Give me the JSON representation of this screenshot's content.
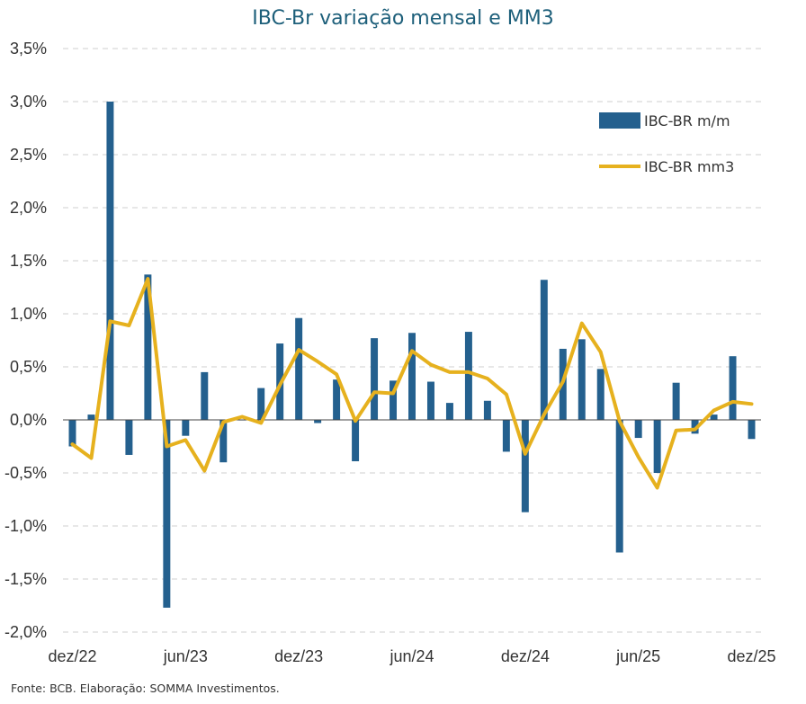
{
  "chart_data": {
    "type": "bar+line",
    "title": "IBC-Br variação mensal e MM3",
    "source": "Fonte: BCB. Elaboração: SOMMA Investimentos.",
    "ylim": [
      -2.0,
      3.5
    ],
    "yticks": [
      3.5,
      3.0,
      2.5,
      2.0,
      1.5,
      1.0,
      0.5,
      0.0,
      -0.5,
      -1.0,
      -1.5,
      -2.0
    ],
    "ytick_labels": [
      "3,5%",
      "3,0%",
      "2,5%",
      "2,0%",
      "1,5%",
      "1,0%",
      "0,5%",
      "0,0%",
      "-0,5%",
      "-1,0%",
      "-1,5%",
      "-2,0%"
    ],
    "xtick_labels": [
      {
        "label": "dez/22",
        "index": 0
      },
      {
        "label": "jun/23",
        "index": 6
      },
      {
        "label": "dez/23",
        "index": 12
      },
      {
        "label": "jun/24",
        "index": 18
      },
      {
        "label": "dez/24",
        "index": 24
      },
      {
        "label": "jun/25",
        "index": 30
      },
      {
        "label": "dez/25",
        "index": 36
      }
    ],
    "categories": [
      "dez/22",
      "jan/23",
      "fev/23",
      "mar/23",
      "abr/23",
      "mai/23",
      "jun/23",
      "jul/23",
      "ago/23",
      "set/23",
      "out/23",
      "nov/23",
      "dez/23",
      "jan/24",
      "fev/24",
      "mar/24",
      "abr/24",
      "mai/24",
      "jun/24",
      "jul/24",
      "ago/24",
      "set/24",
      "out/24",
      "nov/24",
      "dez/24",
      "jan/25",
      "fev/25",
      "mar/25",
      "abr/25",
      "mai/25",
      "jun/25",
      "jul/25",
      "ago/25",
      "set/25",
      "out/25",
      "nov/25",
      "dez/25"
    ],
    "series": [
      {
        "name": "IBC-BR m/m",
        "type": "bar",
        "color": "#24608e",
        "values": [
          -0.25,
          0.05,
          3.0,
          -0.33,
          1.37,
          -1.77,
          -0.15,
          0.45,
          -0.4,
          0.0,
          0.3,
          0.72,
          0.96,
          -0.03,
          0.38,
          -0.39,
          0.77,
          0.37,
          0.82,
          0.36,
          0.16,
          0.83,
          0.18,
          -0.3,
          -0.87,
          1.32,
          0.67,
          0.76,
          0.48,
          -1.25,
          -0.17,
          -0.5,
          0.35,
          -0.13,
          0.05,
          0.6,
          -0.18
        ]
      },
      {
        "name": "IBC-BR mm3",
        "type": "line",
        "color": "#e6b11e",
        "values": [
          -0.23,
          -0.36,
          0.93,
          0.89,
          1.33,
          -0.25,
          -0.19,
          -0.48,
          -0.02,
          0.03,
          -0.03,
          0.33,
          0.66,
          0.55,
          0.43,
          -0.01,
          0.26,
          0.25,
          0.65,
          0.52,
          0.45,
          0.45,
          0.39,
          0.24,
          -0.32,
          0.05,
          0.36,
          0.91,
          0.64,
          -0.01,
          -0.35,
          -0.64,
          -0.1,
          -0.09,
          0.09,
          0.17,
          0.15
        ]
      }
    ],
    "legend": {
      "position": "top-right",
      "entries": [
        "IBC-BR m/m",
        "IBC-BR mm3"
      ]
    },
    "grid": {
      "y": true,
      "style": "dashed"
    }
  }
}
